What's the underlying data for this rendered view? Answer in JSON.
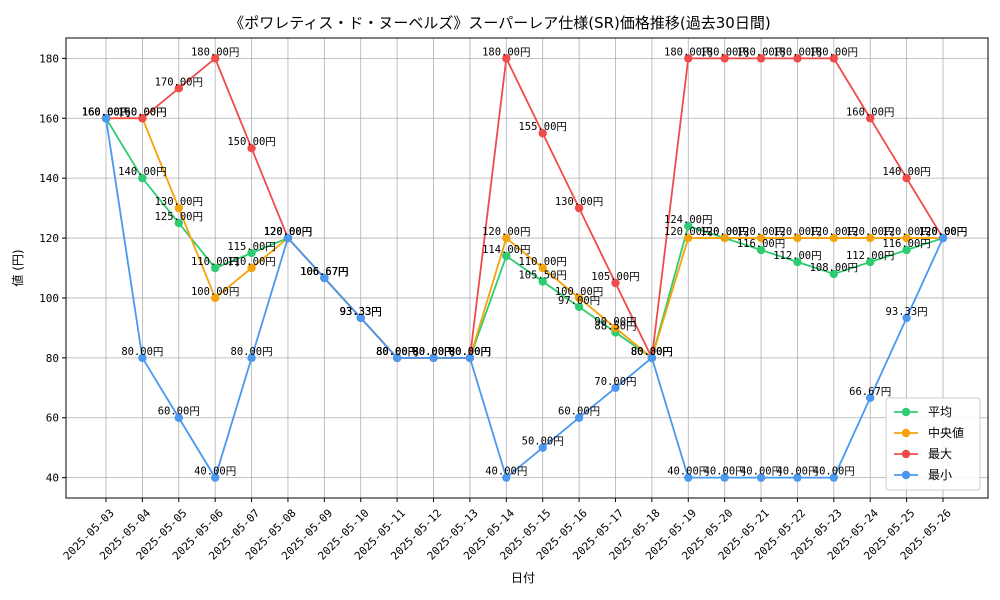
{
  "chart_data": {
    "type": "line",
    "title": "《ポワレティス・ド・ヌーベルズ》スーパーレア仕様(SR)価格推移(過去30日間)",
    "xlabel": "日付",
    "ylabel": "値 (円)",
    "ylim": [
      33.2,
      186.8
    ],
    "yticks": [
      40,
      60,
      80,
      100,
      120,
      140,
      160,
      180
    ],
    "grid": true,
    "legend_position": "bottom-right",
    "label_suffix": "円",
    "categories": [
      "2025-05-03",
      "2025-05-04",
      "2025-05-05",
      "2025-05-06",
      "2025-05-07",
      "2025-05-08",
      "2025-05-09",
      "2025-05-10",
      "2025-05-11",
      "2025-05-12",
      "2025-05-13",
      "2025-05-14",
      "2025-05-15",
      "2025-05-16",
      "2025-05-17",
      "2025-05-18",
      "2025-05-19",
      "2025-05-20",
      "2025-05-21",
      "2025-05-22",
      "2025-05-23",
      "2025-05-24",
      "2025-05-25",
      "2025-05-26"
    ],
    "series": [
      {
        "name": "平均",
        "color": "#2ecc71",
        "values": [
          160,
          140,
          125,
          110,
          115,
          120,
          106.67,
          93.33,
          80,
          80,
          80,
          114,
          105.5,
          97,
          88.5,
          80,
          124,
          120,
          116,
          112,
          108,
          112,
          116,
          120
        ]
      },
      {
        "name": "中央値",
        "color": "#f5a30a",
        "values": [
          160,
          160,
          130,
          100,
          110,
          120,
          106.67,
          93.33,
          80,
          80,
          80,
          120,
          110,
          100,
          90,
          80,
          120,
          120,
          120,
          120,
          120,
          120,
          120,
          120
        ]
      },
      {
        "name": "最大",
        "color": "#ef4b4b",
        "values": [
          160,
          160,
          170,
          180,
          150,
          120,
          106.67,
          93.33,
          80,
          80,
          80,
          180,
          155,
          130,
          105,
          80,
          180,
          180,
          180,
          180,
          180,
          160,
          140,
          120
        ]
      },
      {
        "name": "最小",
        "color": "#4a98f0",
        "values": [
          160,
          80,
          60,
          40,
          80,
          120,
          106.67,
          93.33,
          80,
          80,
          80,
          40,
          50,
          60,
          70,
          80,
          40,
          40,
          40,
          40,
          40,
          66.67,
          93.33,
          120
        ]
      }
    ]
  }
}
